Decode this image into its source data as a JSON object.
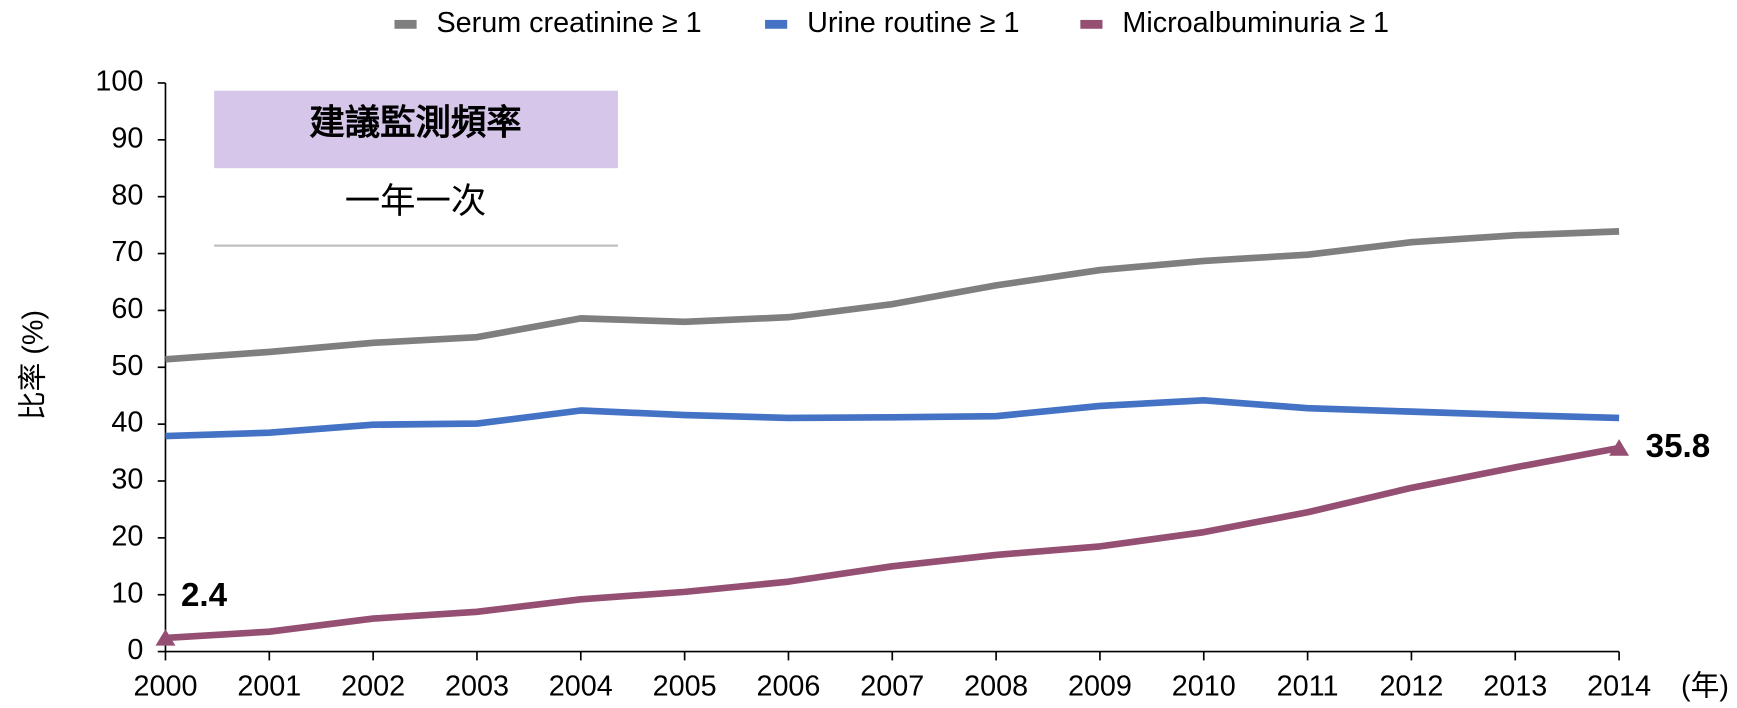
{
  "chart_data": {
    "type": "line",
    "y_label": "比率 (%)",
    "x_label": "(年)",
    "x": [
      2000,
      2001,
      2002,
      2003,
      2004,
      2005,
      2006,
      2007,
      2008,
      2009,
      2010,
      2011,
      2012,
      2013,
      2014
    ],
    "xlim": [
      2000,
      2014
    ],
    "xticks": [
      2000,
      2001,
      2002,
      2003,
      2004,
      2005,
      2006,
      2007,
      2008,
      2009,
      2010,
      2011,
      2012,
      2013,
      2014
    ],
    "ylim": [
      0,
      100
    ],
    "yticks": [
      0,
      10,
      20,
      30,
      40,
      50,
      60,
      70,
      80,
      90,
      100
    ],
    "legend": "top",
    "inset": {
      "title": "建議監測頻率",
      "text": "一年一次"
    },
    "series": [
      {
        "name": "Serum creatinine ≥ 1",
        "color": "#7f7f7f",
        "values": [
          51.4,
          52.7,
          54.3,
          55.3,
          58.6,
          58.0,
          58.8,
          61.1,
          64.4,
          67.1,
          68.7,
          69.8,
          72.0,
          73.2,
          73.9
        ]
      },
      {
        "name": "Urine routine ≥ 1",
        "color": "#4472c4",
        "values": [
          37.9,
          38.5,
          39.9,
          40.1,
          42.4,
          41.6,
          41.1,
          41.2,
          41.4,
          43.2,
          44.2,
          42.8,
          42.2,
          41.6,
          41.1
        ]
      },
      {
        "name": "Microalbuminuria ≥ 1",
        "color": "#954f72",
        "values": [
          2.4,
          3.5,
          5.8,
          7.0,
          9.2,
          10.5,
          12.3,
          15.0,
          17.0,
          18.5,
          21.0,
          24.5,
          28.8,
          32.4,
          35.8
        ],
        "value_labels": [
          "2.4",
          null,
          null,
          null,
          null,
          null,
          null,
          null,
          null,
          null,
          null,
          null,
          null,
          null,
          "35.8"
        ]
      }
    ]
  }
}
